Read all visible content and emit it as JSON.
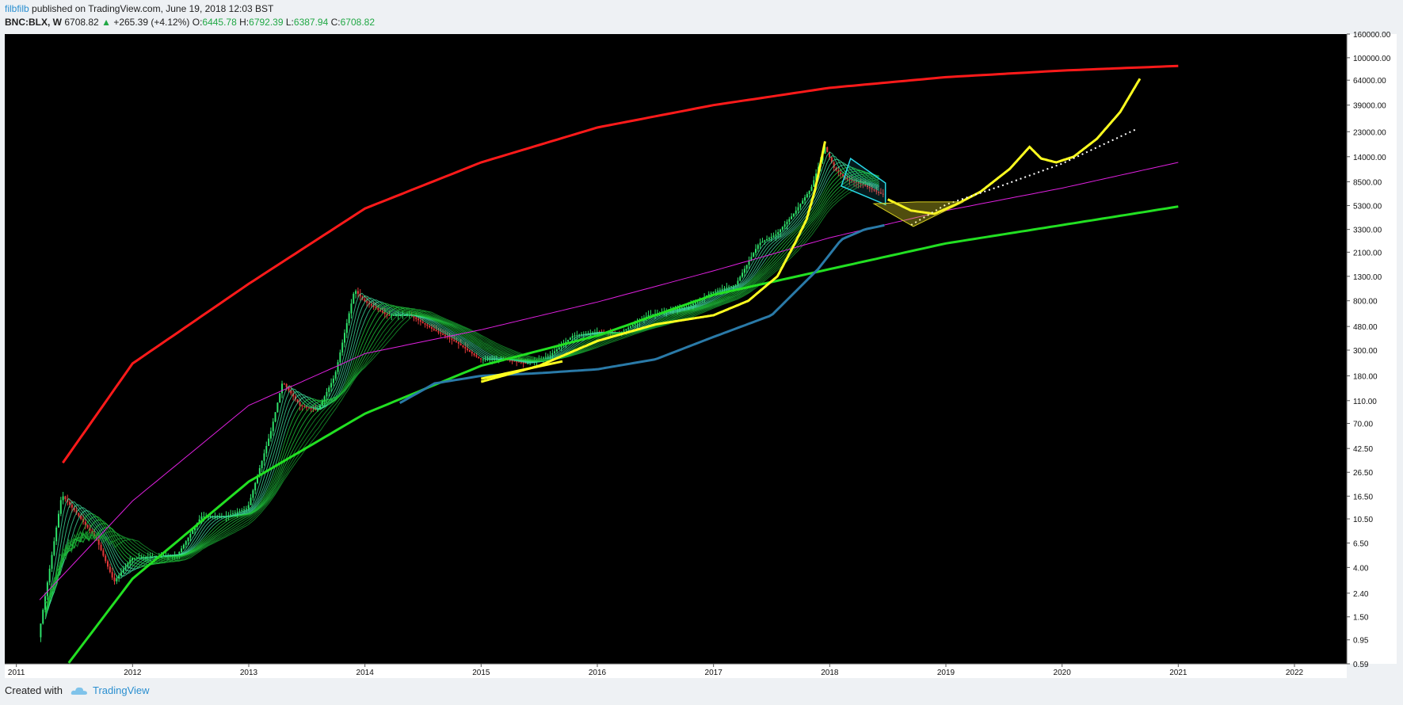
{
  "header": {
    "author": "filbfilb",
    "published_text": "published on TradingView.com, June 19, 2018 12:03 BST",
    "symbol": "BNC:BLX, W",
    "last": "6708.82",
    "change": "+265.39 (+4.12%)",
    "open_label": "O:",
    "open": "6445.78",
    "high_label": "H:",
    "high": "6792.39",
    "low_label": "L:",
    "low": "6387.94",
    "close_label": "C:",
    "close": "6708.82",
    "up_arrow": "▲"
  },
  "footer": {
    "created_with": "Created with",
    "brand": "TradingView",
    "brand_icon": "cloud-logo-icon"
  },
  "colors": {
    "background": "#000000",
    "upper_curve": "#ff1a1a",
    "lower_curve": "#22e022",
    "magenta_curve": "#e020e0",
    "projection": "#ffff20",
    "long_ma": "#2a7aa8",
    "channel": "#28d8e8",
    "axis_text": "#111111"
  },
  "chart_data": {
    "type": "line",
    "title": "",
    "xlabel": "",
    "ylabel": "",
    "y_scale": "log",
    "x_ticks": [
      "2011",
      "2012",
      "2013",
      "2014",
      "2015",
      "2016",
      "2017",
      "2018",
      "2019",
      "2020",
      "2021",
      "2022"
    ],
    "y_ticks": [
      "160000.00",
      "100000.00",
      "64000.00",
      "39000.00",
      "23000.00",
      "14000.00",
      "8500.00",
      "5300.00",
      "3300.00",
      "2100.00",
      "1300.00",
      "800.00",
      "480.00",
      "300.00",
      "180.00",
      "110.00",
      "70.00",
      "42.50",
      "26.50",
      "16.50",
      "10.50",
      "6.50",
      "4.00",
      "2.40",
      "1.50",
      "0.95",
      "0.59"
    ],
    "xlim": [
      2010.9,
      2022.45
    ],
    "ylim": [
      0.59,
      160000
    ],
    "grid": false,
    "series": [
      {
        "x": [
          2011.2,
          2011.4,
          2011.55,
          2011.7,
          2011.85,
          2012.0,
          2012.2,
          2012.4,
          2012.6,
          2012.8,
          2013.0,
          2013.2,
          2013.3,
          2013.45,
          2013.6,
          2013.75,
          2013.92,
          2014.0,
          2014.2,
          2014.4,
          2014.6,
          2014.8,
          2015.0,
          2015.2,
          2015.4,
          2015.6,
          2015.8,
          2016.0,
          2016.2,
          2016.45,
          2016.6,
          2016.8,
          2017.0,
          2017.2,
          2017.4,
          2017.55,
          2017.7,
          2017.85,
          2017.97,
          2018.05,
          2018.15,
          2018.3,
          2018.45
        ],
        "values": [
          1.0,
          17,
          11,
          7,
          3,
          4.8,
          5.0,
          5.2,
          11,
          11,
          13,
          60,
          160,
          100,
          90,
          180,
          1000,
          800,
          600,
          600,
          450,
          350,
          250,
          250,
          230,
          270,
          400,
          430,
          420,
          600,
          650,
          720,
          950,
          1100,
          2500,
          3000,
          4500,
          7500,
          17000,
          11000,
          9000,
          8000,
          6700
        ]
      },
      {
        "x": [
          2011.4,
          2012.0,
          2013.0,
          2014.0,
          2015.0,
          2016.0,
          2017.0,
          2018.0,
          2019.0,
          2020.0,
          2021.0
        ],
        "values": [
          32,
          230,
          1120,
          5000,
          12500,
          25000,
          39000,
          55000,
          68000,
          77500,
          85000
        ]
      },
      {
        "x": [
          2011.45,
          2012.0,
          2013.0,
          2014.0,
          2015.0,
          2016.0,
          2017.0,
          2018.0,
          2019.0,
          2020.0,
          2021.0
        ],
        "values": [
          0.6,
          3.2,
          22,
          85,
          220,
          400,
          900,
          1500,
          2500,
          3600,
          5200
        ]
      },
      {
        "x": [
          2011.2,
          2012.0,
          2013.0,
          2014.0,
          2015.0,
          2016.0,
          2017.0,
          2018.0,
          2019.0,
          2020.0,
          2021.0
        ],
        "values": [
          2.1,
          15,
          100,
          280,
          450,
          780,
          1450,
          2800,
          4800,
          7500,
          12500
        ]
      },
      {
        "x": [
          2014.3,
          2014.6,
          2015.0,
          2015.5,
          2016.0,
          2016.5,
          2017.0,
          2017.5,
          2017.9,
          2018.1,
          2018.3,
          2018.48
        ],
        "values": [
          105,
          155,
          180,
          190,
          205,
          250,
          390,
          600,
          1500,
          2700,
          3300,
          3600
        ]
      },
      {
        "x": [
          2015.0,
          2015.5,
          2016.0,
          2016.5,
          2017.0,
          2017.3,
          2017.55,
          2017.7,
          2017.8,
          2017.87,
          2017.92,
          2017.96
        ],
        "values": [
          160,
          220,
          360,
          500,
          600,
          800,
          1300,
          2500,
          4000,
          7000,
          12000,
          19000
        ]
      },
      {
        "x": [
          2018.5,
          2018.7,
          2018.9,
          2019.1,
          2019.3,
          2019.55,
          2019.72,
          2019.82,
          2019.95,
          2020.1,
          2020.3,
          2020.5,
          2020.67
        ],
        "values": [
          6000,
          4800,
          4500,
          5500,
          7000,
          11000,
          17000,
          13500,
          12500,
          14000,
          20000,
          34000,
          66000
        ]
      },
      {
        "x": [
          2018.7,
          2019.0,
          2019.5,
          2020.0,
          2020.67
        ],
        "values": [
          3600,
          5400,
          8000,
          12200,
          25000
        ]
      }
    ]
  }
}
